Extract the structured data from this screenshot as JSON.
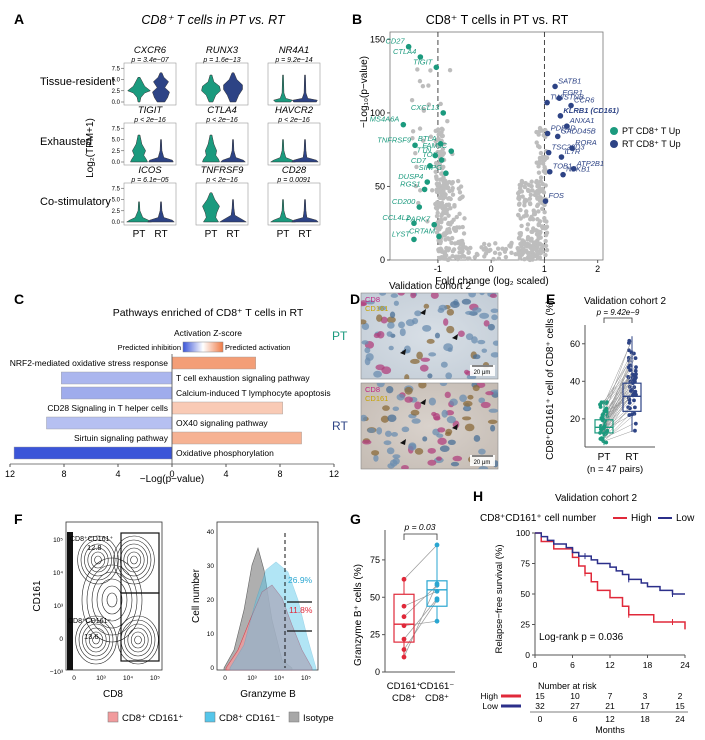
{
  "panel_letters": {
    "A": "A",
    "B": "B",
    "C": "C",
    "D": "D",
    "E": "E",
    "F": "F",
    "G": "G",
    "H": "H"
  },
  "colors": {
    "pt_green": "#1b9a7e",
    "rt_navy": "#2d4385",
    "grey": "#bdbdbd",
    "red": "#e0293a",
    "blue_line": "#2b2f8a",
    "cyan": "#55c6ea",
    "pink": "#f19b9d",
    "isotype": "#a7a7a7",
    "inhibition": "#3b55d8",
    "activation": "#ef7a45"
  },
  "panelA": {
    "title": "CD8⁺ T cells in PT vs. RT",
    "ylabel": "Log₂(TPM+1)",
    "xticks": [
      "PT",
      "RT"
    ],
    "yticks": [
      "0.0",
      "2.5",
      "5.0",
      "7.5"
    ],
    "rows": [
      {
        "label": "Tissue-resident",
        "genes": [
          {
            "gene": "CXCR6",
            "p": "p = 3.4e−07"
          },
          {
            "gene": "RUNX3",
            "p": "p = 1.6e−13"
          },
          {
            "gene": "NR4A1",
            "p": "p = 9.2e−14"
          }
        ]
      },
      {
        "label": "Exhausted",
        "genes": [
          {
            "gene": "TIGIT",
            "p": "p < 2e−16"
          },
          {
            "gene": "CTLA4",
            "p": "p < 2e−16"
          },
          {
            "gene": "HAVCR2",
            "p": "p < 2e−16"
          }
        ]
      },
      {
        "label": "Co-stimulatory",
        "genes": [
          {
            "gene": "ICOS",
            "p": "p = 6.1e−05"
          },
          {
            "gene": "TNFRSF9",
            "p": "p < 2e−16"
          },
          {
            "gene": "CD28",
            "p": "p = 0.0091"
          }
        ]
      }
    ]
  },
  "panelB": {
    "title": "CD8⁺ T cells in PT vs. RT",
    "xlabel": "Fold change (log₂ scaled)",
    "ylabel": "−Log₁₀(p−value)",
    "legend": [
      {
        "label": "PT CD8⁺ T Up",
        "color": "#1b9a7e"
      },
      {
        "label": "RT CD8⁺ T Up",
        "color": "#2d4385"
      }
    ],
    "chart_data": {
      "type": "scatter",
      "xlim": [
        -1.9,
        2.1
      ],
      "ylim": [
        0,
        155
      ],
      "xticks": [
        -1,
        0,
        1,
        2
      ],
      "yticks": [
        0,
        50,
        100,
        150
      ],
      "thresholds_x": [
        -1,
        1
      ],
      "pt_genes": [
        {
          "name": "CD27",
          "x": -1.55,
          "y": 145
        },
        {
          "name": "CTLA4",
          "x": -1.33,
          "y": 138
        },
        {
          "name": "TIGIT",
          "x": -1.03,
          "y": 131
        },
        {
          "name": "CXCL13",
          "x": -0.9,
          "y": 100
        },
        {
          "name": "MS4A6A",
          "x": -1.65,
          "y": 92
        },
        {
          "name": "BTLA",
          "x": -0.95,
          "y": 79
        },
        {
          "name": "TNFRSF9",
          "x": -1.43,
          "y": 78
        },
        {
          "name": "FAM3C",
          "x": -0.75,
          "y": 74
        },
        {
          "name": "TTN",
          "x": -1.05,
          "y": 71
        },
        {
          "name": "TOX",
          "x": -0.93,
          "y": 68
        },
        {
          "name": "CD7",
          "x": -1.15,
          "y": 64
        },
        {
          "name": "SIRPG",
          "x": -0.85,
          "y": 59
        },
        {
          "name": "DUSP4",
          "x": -1.2,
          "y": 53
        },
        {
          "name": "RGS1",
          "x": -1.25,
          "y": 48
        },
        {
          "name": "CD200",
          "x": -1.35,
          "y": 36
        },
        {
          "name": "PARK7",
          "x": -1.07,
          "y": 24
        },
        {
          "name": "CCL4L2",
          "x": -1.45,
          "y": 25
        },
        {
          "name": "LYST",
          "x": -1.45,
          "y": 14
        },
        {
          "name": "CRTAM",
          "x": -0.98,
          "y": 16
        }
      ],
      "rt_genes": [
        {
          "name": "SATB1",
          "x": 1.2,
          "y": 118
        },
        {
          "name": "EGR1",
          "x": 1.28,
          "y": 110
        },
        {
          "name": "TWISTNB",
          "x": 1.05,
          "y": 107
        },
        {
          "name": "CCR6",
          "x": 1.5,
          "y": 105
        },
        {
          "name": "KLRB1 (CD161)",
          "x": 1.3,
          "y": 98
        },
        {
          "name": "ANXA1",
          "x": 1.42,
          "y": 91
        },
        {
          "name": "PDE4D",
          "x": 1.06,
          "y": 86
        },
        {
          "name": "GADD45B",
          "x": 1.25,
          "y": 84
        },
        {
          "name": "RORA",
          "x": 1.52,
          "y": 76
        },
        {
          "name": "TSC22D3",
          "x": 1.08,
          "y": 73
        },
        {
          "name": "IL7R",
          "x": 1.32,
          "y": 70
        },
        {
          "name": "ATP2B1",
          "x": 1.55,
          "y": 62
        },
        {
          "name": "TOB1",
          "x": 1.1,
          "y": 60
        },
        {
          "name": "NFKB1",
          "x": 1.35,
          "y": 58
        },
        {
          "name": "FOS",
          "x": 1.02,
          "y": 40
        }
      ]
    }
  },
  "panelC": {
    "title": "Pathways enriched of CD8⁺ T cells in RT",
    "zscore_label": "Activation Z-score",
    "pred_inhibition": "Predicted inhibition",
    "pred_activation": "Predicted activation",
    "xlabel": "−Log(p−value)",
    "chart_data": {
      "type": "bar",
      "xticks": [
        12,
        8,
        4,
        0,
        4,
        8,
        12
      ],
      "pathways": [
        {
          "label": "NRF2-mediated oxidative stress response",
          "value": 6.2,
          "zscore": 1.6
        },
        {
          "label": "T cell exhaustion signaling pathway",
          "value": -8.2,
          "zscore": -0.6
        },
        {
          "label": "Calcium-induced T lymphocyte apoptosis",
          "value": -8.2,
          "zscore": -0.8
        },
        {
          "label": "CD28 Signaling in T helper cells",
          "value": 8.2,
          "zscore": 0.5
        },
        {
          "label": "OX40 signaling pathway",
          "value": -9.3,
          "zscore": -0.4
        },
        {
          "label": "Sirtuin signaling pathway",
          "value": 9.6,
          "zscore": 1.1
        },
        {
          "label": "Oxidative phosphorylation",
          "value": -11.7,
          "zscore": -2.5
        }
      ]
    }
  },
  "panelD": {
    "title": "Validation cohort 2",
    "markers": [
      "CD8",
      "CD161"
    ],
    "rows": [
      "PT",
      "RT"
    ],
    "scalebar": "20 μm"
  },
  "panelE": {
    "title": "Validation cohort 2",
    "ylabel": "CD8⁺CD161⁺ cell of CD8⁺ cells (%)",
    "pvalue": "p = 9.42e−9",
    "xlabels": [
      "PT",
      "RT"
    ],
    "n_label": "(n = 47 pairs)",
    "chart_data": {
      "type": "box",
      "ylim": [
        5,
        70
      ],
      "yticks": [
        20,
        40,
        60
      ],
      "PT": {
        "min": 6,
        "q1": 12.5,
        "median": 15.5,
        "q3": 19.5,
        "max": 30
      },
      "RT": {
        "min": 13,
        "q1": 24,
        "median": 32,
        "q3": 39,
        "max": 64
      }
    }
  },
  "panelF": {
    "contour": {
      "xlabel": "CD8",
      "ylabel": "CD161",
      "gate_top_label": "CD8⁺CD161⁺",
      "gate_top_value": "12.8",
      "gate_bottom_label": "CD8⁺CD161⁻",
      "gate_bottom_value": "13.6",
      "xticks": [
        "0",
        "10³",
        "10⁴",
        "10⁵"
      ],
      "yticks": [
        "10⁵",
        "10⁴",
        "10³",
        "0",
        "−10³"
      ]
    },
    "histogram": {
      "xlabel": "Granzyme B",
      "ylabel": "Cell number",
      "yticks": [
        "0",
        "10",
        "20",
        "30",
        "40"
      ],
      "xticks": [
        "0",
        "10³",
        "10⁴",
        "10⁵"
      ],
      "pct_cyan": "26.9%",
      "pct_red": "11.8%"
    },
    "legend": [
      "CD8⁺ CD161⁺",
      "CD8⁺ CD161⁻",
      "Isotype"
    ]
  },
  "panelG": {
    "ylabel": "Granzyme B⁺ cells (%)",
    "pvalue": "p = 0.03",
    "xlabels_line1": [
      "CD161⁺",
      "CD161⁻"
    ],
    "xlabels_line2": [
      "CD8⁺",
      "CD8⁺"
    ],
    "chart_data": {
      "type": "box",
      "ylim": [
        0,
        95
      ],
      "yticks": [
        0,
        25,
        50,
        75
      ],
      "pairs": [
        [
          44,
          54
        ],
        [
          22,
          49
        ],
        [
          31,
          34
        ],
        [
          37,
          58
        ],
        [
          10,
          59
        ],
        [
          62,
          85
        ],
        [
          15,
          48
        ]
      ],
      "CD161pos": {
        "min": 10,
        "q1": 20,
        "median": 32,
        "q3": 52,
        "max": 62
      },
      "CD161neg": {
        "min": 33,
        "q1": 44,
        "median": 55,
        "q3": 61,
        "max": 85
      }
    }
  },
  "panelH": {
    "title": "Validation cohort 2",
    "legend_title": "CD8⁺CD161⁺ cell number",
    "legend": [
      {
        "label": "High",
        "color": "#e0293a"
      },
      {
        "label": "Low",
        "color": "#2b2f8a"
      }
    ],
    "ylabel": "Relapse−free survival (%)",
    "xlabel": "Months",
    "logrank": "Log-rank p = 0.036",
    "risk_title": "Number at risk",
    "risk_rows": [
      {
        "label": "High",
        "values": [
          "15",
          "10",
          "7",
          "3",
          "2"
        ]
      },
      {
        "label": "Low",
        "values": [
          "32",
          "27",
          "21",
          "17",
          "15"
        ]
      }
    ],
    "chart_data": {
      "type": "line",
      "xticks": [
        0,
        6,
        12,
        18,
        24
      ],
      "yticks": [
        0,
        25,
        50,
        75,
        100
      ],
      "series": [
        {
          "name": "High",
          "points": [
            [
              0,
              100
            ],
            [
              1,
              93
            ],
            [
              3,
              87
            ],
            [
              6,
              80
            ],
            [
              7,
              73
            ],
            [
              8,
              67
            ],
            [
              9,
              60
            ],
            [
              10,
              53
            ],
            [
              12,
              47
            ],
            [
              14,
              40
            ],
            [
              15,
              33
            ],
            [
              19,
              27
            ],
            [
              24,
              21
            ]
          ]
        },
        {
          "name": "Low",
          "points": [
            [
              0,
              100
            ],
            [
              1,
              97
            ],
            [
              2,
              94
            ],
            [
              3,
              91
            ],
            [
              5,
              88
            ],
            [
              6,
              84
            ],
            [
              7,
              81
            ],
            [
              9,
              78
            ],
            [
              10,
              75
            ],
            [
              12,
              72
            ],
            [
              13,
              69
            ],
            [
              14,
              66
            ],
            [
              15,
              62
            ],
            [
              17,
              59
            ],
            [
              18,
              56
            ],
            [
              20,
              53
            ],
            [
              22,
              50
            ],
            [
              24,
              50
            ]
          ]
        }
      ]
    }
  }
}
